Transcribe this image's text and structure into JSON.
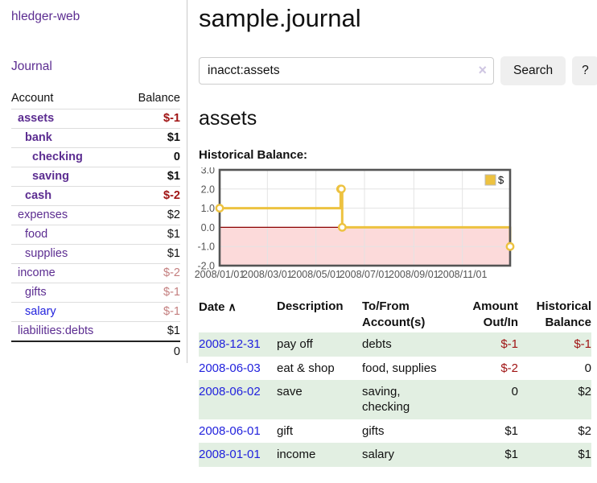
{
  "brand": "hledger-web",
  "colors": {
    "link_purple": "#5c2d91",
    "link_blue": "#2222dd",
    "negative": "#a01414",
    "negative_muted": "#c47f7f",
    "row_stripe_green": "#e2efe2"
  },
  "sidebar": {
    "journal_link": "Journal",
    "accounts": {
      "col_account": "Account",
      "col_balance": "Balance",
      "rows": [
        {
          "name": "assets",
          "balance": "$-1",
          "depth": 1,
          "bold": true,
          "balance_style": "negative",
          "link_style": "purple"
        },
        {
          "name": "bank",
          "balance": "$1",
          "depth": 2,
          "bold": true,
          "balance_style": "normal",
          "link_style": "purple"
        },
        {
          "name": "checking",
          "balance": "0",
          "depth": 3,
          "bold": true,
          "balance_style": "normal",
          "link_style": "purple"
        },
        {
          "name": "saving",
          "balance": "$1",
          "depth": 3,
          "bold": true,
          "balance_style": "normal",
          "link_style": "purple"
        },
        {
          "name": "cash",
          "balance": "$-2",
          "depth": 2,
          "bold": true,
          "balance_style": "negative",
          "link_style": "purple"
        },
        {
          "name": "expenses",
          "balance": "$2",
          "depth": 1,
          "bold": false,
          "balance_style": "normal",
          "link_style": "purple"
        },
        {
          "name": "food",
          "balance": "$1",
          "depth": 2,
          "bold": false,
          "balance_style": "normal",
          "link_style": "purple"
        },
        {
          "name": "supplies",
          "balance": "$1",
          "depth": 2,
          "bold": false,
          "balance_style": "normal",
          "link_style": "purple"
        },
        {
          "name": "income",
          "balance": "$-2",
          "depth": 1,
          "bold": false,
          "balance_style": "negative-muted",
          "link_style": "purple"
        },
        {
          "name": "gifts",
          "balance": "$-1",
          "depth": 2,
          "bold": false,
          "balance_style": "negative-muted",
          "link_style": "purple"
        },
        {
          "name": "salary",
          "balance": "$-1",
          "depth": 2,
          "bold": false,
          "balance_style": "negative-muted",
          "link_style": "blue"
        },
        {
          "name": "liabilities:debts",
          "balance": "$1",
          "depth": 1,
          "bold": false,
          "balance_style": "normal",
          "link_style": "purple"
        }
      ],
      "total": "0"
    }
  },
  "main": {
    "title": "sample.journal",
    "search": {
      "value": "inacct:assets",
      "clear_icon": "×",
      "search_button": "Search",
      "help_button": "?"
    },
    "account_heading": "assets",
    "chart_title": "Historical Balance:"
  },
  "chart_data": {
    "type": "line",
    "step": true,
    "title": "Historical Balance",
    "series": [
      {
        "name": "$",
        "color": "#edc240",
        "x": [
          "2008-01-01",
          "2008-06-01",
          "2008-06-02",
          "2008-06-03",
          "2008-12-31"
        ],
        "y": [
          1,
          2,
          2,
          0,
          -1
        ]
      }
    ],
    "ylim": [
      -2,
      3
    ],
    "ytick_labels": [
      "3.0",
      "2.0",
      "1.0",
      "0.0",
      "-1.0",
      "-2.0"
    ],
    "ytick_values": [
      3,
      2,
      1,
      0,
      -1,
      -2
    ],
    "xtick_labels": [
      "2008/01/01",
      "2008/03/01",
      "2008/05/01",
      "2008/07/01",
      "2008/09/01",
      "2008/11/01"
    ],
    "xtick_dates": [
      "2008-01-01",
      "2008-03-01",
      "2008-05-01",
      "2008-07-01",
      "2008-09-01",
      "2008-11-01"
    ],
    "legend": {
      "label": "$",
      "position": "top-right"
    },
    "grid": true,
    "colors": {
      "line": "#edc240",
      "marker_fill": "#ffffff",
      "negative_fill": "#fcdada",
      "zero_line": "#8b0000",
      "grid": "#e3e3e3",
      "border": "#545454",
      "tick_text": "#545454"
    }
  },
  "register": {
    "header": {
      "date": "Date",
      "sort_icon": "∧",
      "description": "Description",
      "account_l1": "To/From",
      "account_l2": "Account(s)",
      "amount_l1": "Amount",
      "amount_l2": "Out/In",
      "balance_l1": "Historical",
      "balance_l2": "Balance"
    },
    "rows": [
      {
        "date": "2008-12-31",
        "description": "pay off",
        "accounts": "debts",
        "amount": "$-1",
        "balance": "$-1",
        "amount_negative": true,
        "balance_negative": true
      },
      {
        "date": "2008-06-03",
        "description": "eat & shop",
        "accounts": "food, supplies",
        "amount": "$-2",
        "balance": "0",
        "amount_negative": true,
        "balance_negative": false
      },
      {
        "date": "2008-06-02",
        "description": "save",
        "accounts": "saving, checking",
        "amount": "0",
        "balance": "$2",
        "amount_negative": false,
        "balance_negative": false
      },
      {
        "date": "2008-06-01",
        "description": "gift",
        "accounts": "gifts",
        "amount": "$1",
        "balance": "$2",
        "amount_negative": false,
        "balance_negative": false
      },
      {
        "date": "2008-01-01",
        "description": "income",
        "accounts": "salary",
        "amount": "$1",
        "balance": "$1",
        "amount_negative": false,
        "balance_negative": false
      }
    ]
  }
}
